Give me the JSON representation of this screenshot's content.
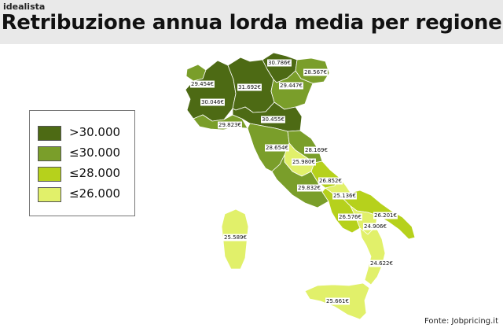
{
  "brand": "idealista",
  "title": "Retribuzione annua lorda media per regione",
  "source": "Fonte: Jobpricing.it",
  "colors": {
    "gt30000": "#4d6a14",
    "le30000": "#7a9e2a",
    "le28000": "#b6d11c",
    "le26000": "#e1f06a",
    "border": "#ffffff"
  },
  "legend": [
    {
      "label": ">30.000",
      "color": "#4d6a14"
    },
    {
      "label": "≤30.000",
      "color": "#7a9e2a"
    },
    {
      "label": "≤28.000",
      "color": "#b6d11c"
    },
    {
      "label": "≤26.000",
      "color": "#e1f06a"
    }
  ],
  "regions": [
    {
      "name": "Valle d'Aosta",
      "value": "29.454€",
      "class": "le30000"
    },
    {
      "name": "Piemonte",
      "value": "30.046€",
      "class": "gt30000"
    },
    {
      "name": "Lombardia",
      "value": "31.692€",
      "class": "gt30000"
    },
    {
      "name": "Trentino-Alto Adige",
      "value": "30.786€",
      "class": "gt30000"
    },
    {
      "name": "Friuli-Venezia Giulia",
      "value": "28.567€",
      "class": "le30000"
    },
    {
      "name": "Veneto",
      "value": "29.447€",
      "class": "le30000"
    },
    {
      "name": "Liguria",
      "value": "29.823€",
      "class": "le30000"
    },
    {
      "name": "Emilia-Romagna",
      "value": "30.455€",
      "class": "gt30000"
    },
    {
      "name": "Toscana",
      "value": "28.654€",
      "class": "le30000"
    },
    {
      "name": "Marche",
      "value": "28.169€",
      "class": "le30000"
    },
    {
      "name": "Umbria",
      "value": "25.980€",
      "class": "le26000"
    },
    {
      "name": "Lazio",
      "value": "29.832€",
      "class": "le30000"
    },
    {
      "name": "Abruzzo",
      "value": "26.852€",
      "class": "le28000"
    },
    {
      "name": "Molise",
      "value": "25.136€",
      "class": "le26000"
    },
    {
      "name": "Campania",
      "value": "26.576€",
      "class": "le28000"
    },
    {
      "name": "Puglia",
      "value": "26.201€",
      "class": "le28000"
    },
    {
      "name": "Basilicata",
      "value": "24.906€",
      "class": "le26000"
    },
    {
      "name": "Calabria",
      "value": "24.622€",
      "class": "le26000"
    },
    {
      "name": "Sicilia",
      "value": "25.661€",
      "class": "le26000"
    },
    {
      "name": "Sardegna",
      "value": "25.589€",
      "class": "le26000"
    }
  ]
}
